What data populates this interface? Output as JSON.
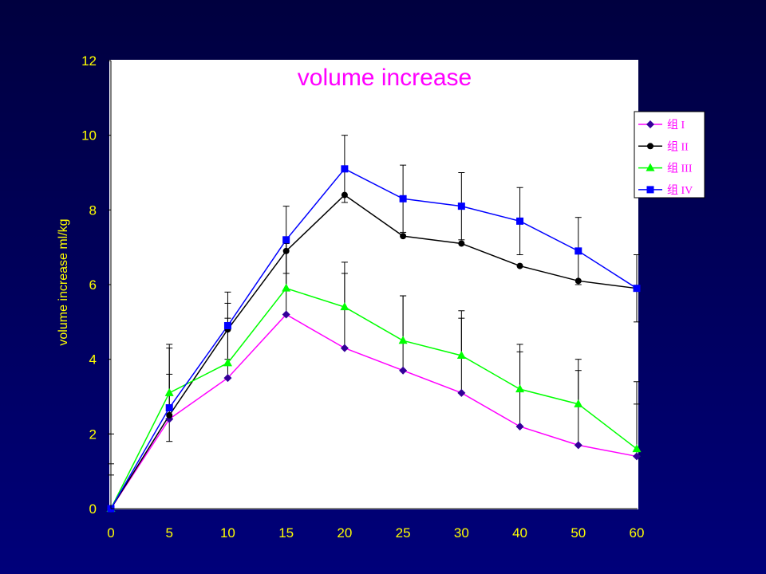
{
  "colors": {
    "background_top": "#00003f",
    "background_bottom": "#00007a",
    "plot_background": "#ffffff",
    "title": "#ff00ff",
    "axis_text": "#ffff00",
    "legend_text": "#ff00ff",
    "axis_line": "#000000",
    "error_bar": "#000000"
  },
  "chart_data": {
    "type": "line",
    "title": "volume increase",
    "xlabel": "",
    "ylabel": "volume increase ml/kg",
    "categories": [
      "0",
      "5",
      "10",
      "15",
      "20",
      "25",
      "30",
      "40",
      "50",
      "60"
    ],
    "ylim": [
      0,
      12
    ],
    "yticks": [
      0,
      2,
      4,
      6,
      8,
      10,
      12
    ],
    "grid": false,
    "legend_position": "top-right",
    "series": [
      {
        "name": "组 I",
        "values": [
          0,
          2.4,
          3.5,
          5.2,
          4.3,
          3.7,
          3.1,
          2.2,
          1.7,
          1.4
        ],
        "error_plus": 2.0,
        "error_minus": 0,
        "line_color": "#ff00ff",
        "marker": "diamond",
        "marker_color": "#330099"
      },
      {
        "name": "组 II",
        "values": [
          0,
          2.5,
          4.8,
          6.9,
          8.4,
          7.3,
          7.1,
          6.5,
          6.1,
          5.9
        ],
        "error_plus": 0,
        "error_minus": 0,
        "line_color": "#000000",
        "marker": "circle",
        "marker_color": "#000000"
      },
      {
        "name": "组 III",
        "values": [
          0,
          3.1,
          3.9,
          5.9,
          5.4,
          4.5,
          4.1,
          3.2,
          2.8,
          1.6
        ],
        "error_plus": 1.2,
        "error_minus": 0,
        "line_color": "#00ff00",
        "marker": "triangle",
        "marker_color": "#00ff00"
      },
      {
        "name": "组 IV",
        "values": [
          0,
          2.7,
          4.9,
          7.2,
          9.1,
          8.3,
          8.1,
          7.7,
          6.9,
          5.9
        ],
        "error_plus": 0.9,
        "error_minus": 0.9,
        "line_color": "#0000ff",
        "marker": "square",
        "marker_color": "#0000ff"
      }
    ]
  }
}
